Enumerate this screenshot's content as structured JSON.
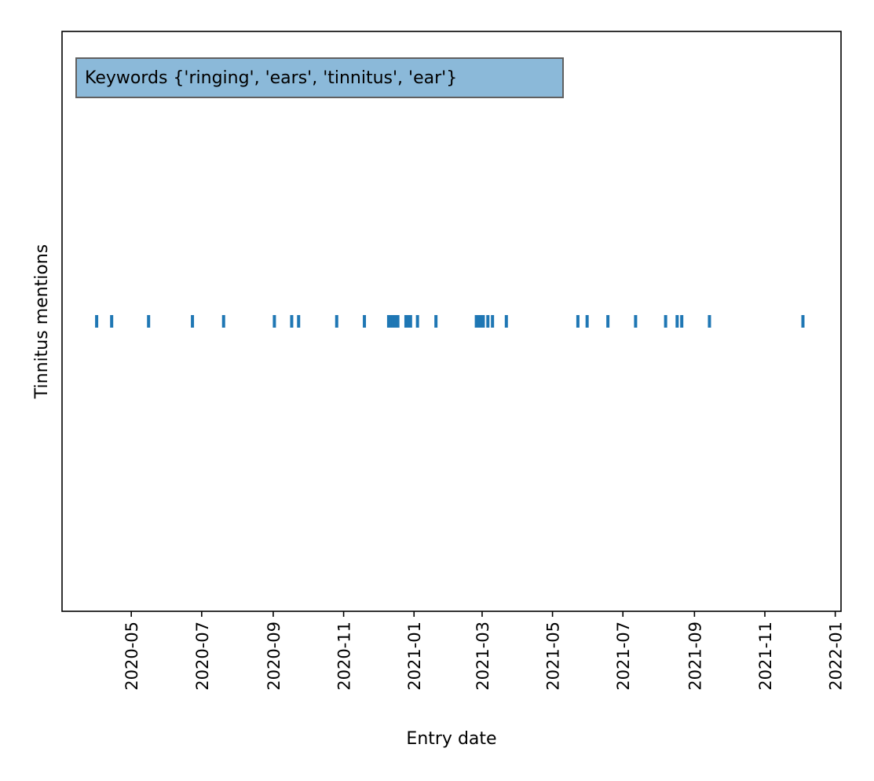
{
  "chart_data": {
    "type": "scatter",
    "marker": "vertical-line",
    "title": "",
    "xlabel": "Entry date",
    "ylabel": "Tinnitus mentions",
    "annotation": "Keywords {'ringing', 'ears', 'tinnitus', 'ear'}",
    "x_tick_labels": [
      "2020-05",
      "2020-07",
      "2020-09",
      "2020-11",
      "2021-01",
      "2021-03",
      "2021-05",
      "2021-07",
      "2021-09",
      "2021-11",
      "2022-01"
    ],
    "xlim": [
      "2020-03-02",
      "2022-01-06"
    ],
    "y_ticks": [],
    "grid": false,
    "colors": {
      "marker": "#1f77b4",
      "annotation_fill": "#8bb9d9",
      "annotation_border": "#606060"
    },
    "x": [
      "2020-04-01",
      "2020-04-14",
      "2020-05-16",
      "2020-06-23",
      "2020-07-20",
      "2020-09-02",
      "2020-09-17",
      "2020-09-23",
      "2020-10-26",
      "2020-11-19",
      "2020-12-10",
      "2020-12-12",
      "2020-12-14",
      "2020-12-16",
      "2020-12-18",
      "2020-12-25",
      "2020-12-27",
      "2020-12-29",
      "2021-01-04",
      "2021-01-20",
      "2021-02-24",
      "2021-02-26",
      "2021-02-28",
      "2021-03-02",
      "2021-03-06",
      "2021-03-10",
      "2021-03-22",
      "2021-05-23",
      "2021-05-31",
      "2021-06-18",
      "2021-07-12",
      "2021-08-07",
      "2021-08-17",
      "2021-08-21",
      "2021-09-14",
      "2021-12-04"
    ],
    "y": [
      1,
      1,
      1,
      1,
      1,
      1,
      1,
      1,
      1,
      1,
      1,
      1,
      1,
      1,
      1,
      1,
      1,
      1,
      1,
      1,
      1,
      1,
      1,
      1,
      1,
      1,
      1,
      1,
      1,
      1,
      1,
      1,
      1,
      1,
      1,
      1
    ]
  }
}
